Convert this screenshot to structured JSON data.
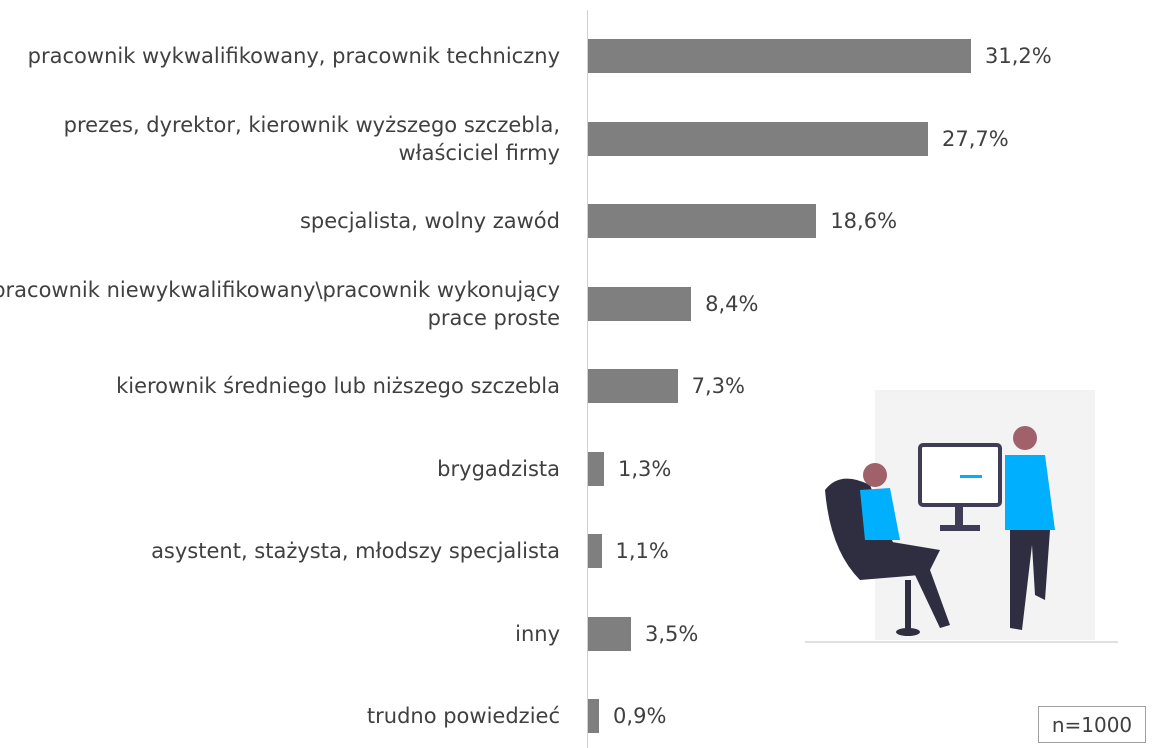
{
  "chart_data": {
    "type": "bar",
    "orientation": "horizontal",
    "categories": [
      "pracownik wykwalifikowany, pracownik techniczny",
      "prezes, dyrektor, kierownik wyższego szczebla, właściciel firmy",
      "specjalista, wolny zawód",
      "pracownik niewykwalifikowany\\pracownik wykonujący prace proste",
      "kierownik średniego lub niższego szczebla",
      "brygadzista",
      "asystent, stażysta, młodszy specjalista",
      "inny",
      "trudno powiedzieć"
    ],
    "values": [
      31.2,
      27.7,
      18.6,
      8.4,
      7.3,
      1.3,
      1.1,
      3.5,
      0.9
    ],
    "value_labels": [
      "31,2%",
      "27,7%",
      "18,6%",
      "8,4%",
      "7,3%",
      "1,3%",
      "1,1%",
      "3,5%",
      "0,9%"
    ],
    "color": "#7f7f7f",
    "note": "n=1000"
  }
}
